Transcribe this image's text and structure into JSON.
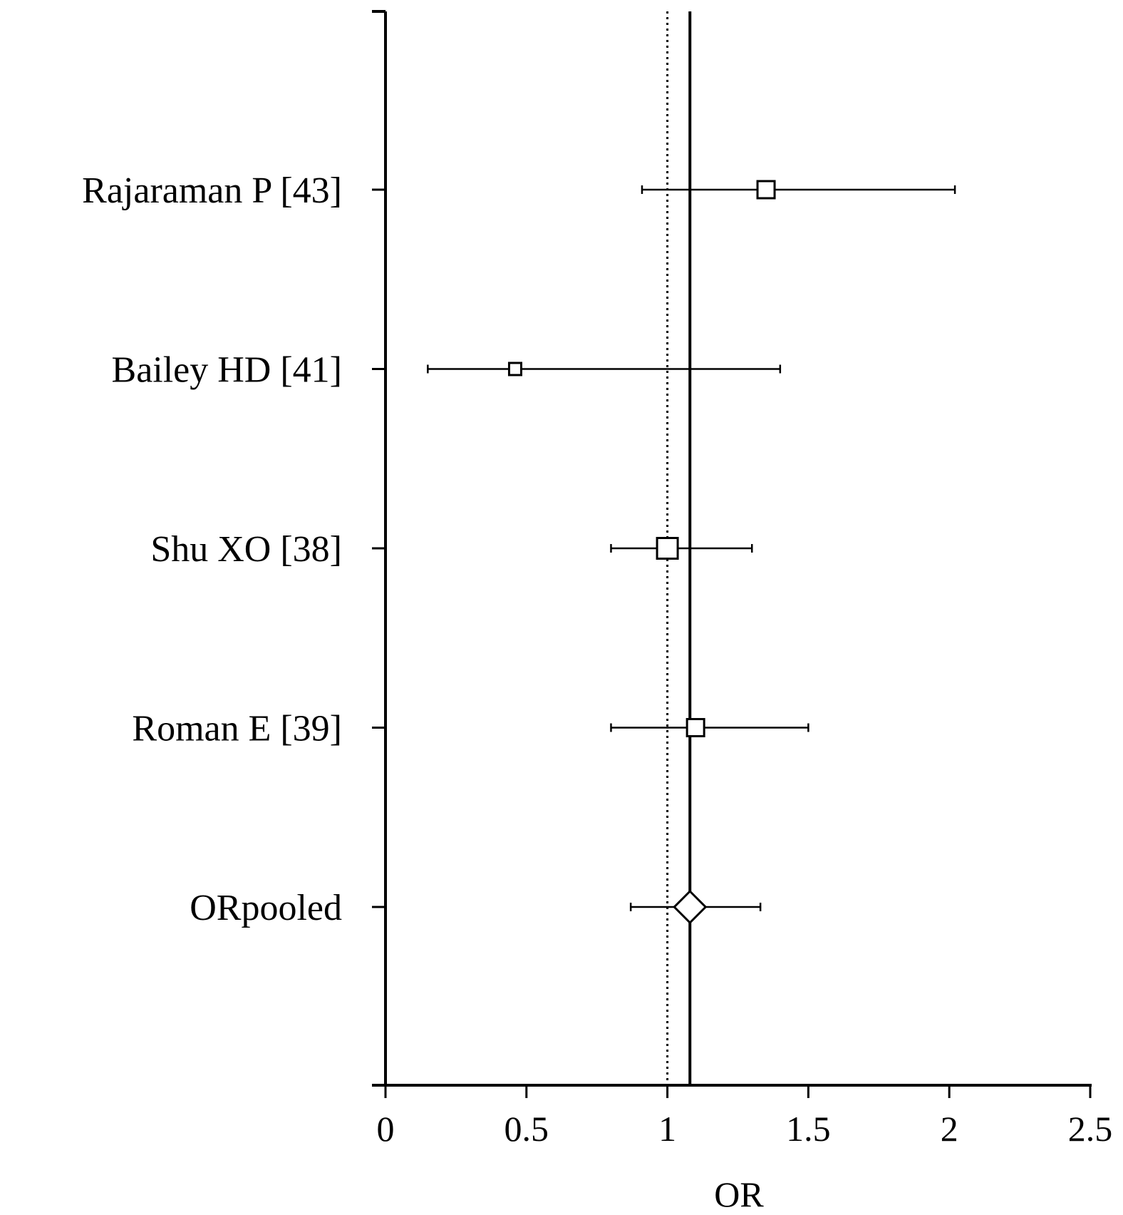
{
  "chart_data": {
    "type": "forest",
    "xlabel": "OR",
    "xlim": [
      0,
      2.5
    ],
    "x_ticks": [
      0,
      0.5,
      1,
      1.5,
      2,
      2.5
    ],
    "x_tick_labels": [
      "0",
      "0.5",
      "1",
      "1.5",
      "2",
      "2.5"
    ],
    "reference_line": 1,
    "pooled_line": 1.08,
    "grid": false,
    "studies": [
      {
        "label": "Rajaraman P [43]",
        "or": 1.35,
        "ci_low": 0.91,
        "ci_high": 2.02,
        "marker": "square",
        "marker_size": "large"
      },
      {
        "label": "Bailey HD [41]",
        "or": 0.46,
        "ci_low": 0.15,
        "ci_high": 1.4,
        "marker": "square",
        "marker_size": "small"
      },
      {
        "label": "Shu XO [38]",
        "or": 1.0,
        "ci_low": 0.8,
        "ci_high": 1.3,
        "marker": "square",
        "marker_size": "xlarge"
      },
      {
        "label": "Roman E [39]",
        "or": 1.1,
        "ci_low": 0.8,
        "ci_high": 1.5,
        "marker": "square",
        "marker_size": "large"
      },
      {
        "label": "ORpooled",
        "or": 1.08,
        "ci_low": 0.87,
        "ci_high": 1.33,
        "marker": "diamond",
        "marker_size": "large"
      }
    ]
  }
}
